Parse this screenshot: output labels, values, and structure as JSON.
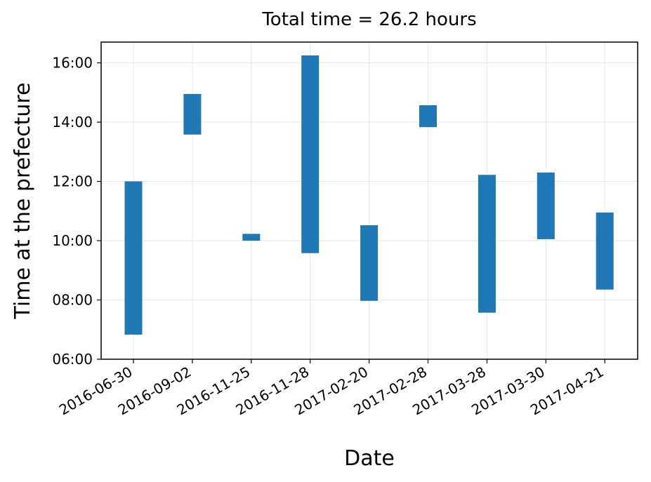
{
  "chart_data": {
    "type": "bar",
    "title": "Total time = 26.2 hours",
    "xlabel": "Date",
    "ylabel": "Time at the prefecture",
    "categories": [
      "2016-06-30",
      "2016-09-02",
      "2016-11-25",
      "2016-11-28",
      "2017-02-20",
      "2017-02-28",
      "2017-03-28",
      "2017-03-30",
      "2017-04-21"
    ],
    "series": [
      {
        "start_hours": [
          6.83,
          13.58,
          10.0,
          9.58,
          7.97,
          13.83,
          7.57,
          10.05,
          8.35
        ],
        "end_hours": [
          12.0,
          14.95,
          10.23,
          16.25,
          10.52,
          14.57,
          12.22,
          12.3,
          10.95
        ]
      }
    ],
    "ylim": [
      6,
      16.7
    ],
    "yticks": [
      "06:00",
      "08:00",
      "10:00",
      "12:00",
      "14:00",
      "16:00"
    ],
    "ytick_values": [
      6,
      8,
      10,
      12,
      14,
      16
    ],
    "grid": true,
    "colors": {
      "bar": "#1f77b4"
    }
  }
}
